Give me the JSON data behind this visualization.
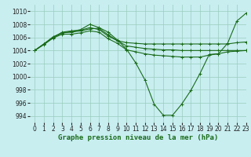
{
  "title": "Graphe pression niveau de la mer (hPa)",
  "bg_color": "#c8eef0",
  "grid_color": "#99ccbb",
  "line_color": "#1a6b1a",
  "xlim": [
    -0.5,
    23
  ],
  "ylim": [
    993,
    1011
  ],
  "yticks": [
    994,
    996,
    998,
    1000,
    1002,
    1004,
    1006,
    1008,
    1010
  ],
  "xticks": [
    0,
    1,
    2,
    3,
    4,
    5,
    6,
    7,
    8,
    9,
    10,
    11,
    12,
    13,
    14,
    15,
    16,
    17,
    18,
    19,
    20,
    21,
    22,
    23
  ],
  "series": [
    [
      1004.0,
      1005.0,
      1006.0,
      1006.7,
      1006.9,
      1007.2,
      1008.0,
      1007.5,
      1006.8,
      1005.6,
      1004.2,
      1002.1,
      999.5,
      995.8,
      994.1,
      994.1,
      995.8,
      997.9,
      1000.5,
      1003.4,
      1003.5,
      1005.1,
      1008.5,
      1009.7
    ],
    [
      1004.0,
      1005.0,
      1006.0,
      1006.8,
      1007.0,
      1007.1,
      1007.5,
      1007.2,
      1006.2,
      1005.5,
      1005.2,
      1005.1,
      1005.0,
      1005.0,
      1005.0,
      1005.0,
      1005.0,
      1005.0,
      1005.0,
      1005.0,
      1005.0,
      1005.0,
      1005.2,
      1005.3
    ],
    [
      1004.0,
      1005.0,
      1006.1,
      1006.7,
      1006.8,
      1007.0,
      1007.3,
      1007.4,
      1006.4,
      1005.5,
      1004.7,
      1004.5,
      1004.3,
      1004.2,
      1004.1,
      1004.1,
      1004.0,
      1004.0,
      1004.0,
      1004.0,
      1004.0,
      1004.0,
      1004.0,
      1004.0
    ],
    [
      1004.0,
      1004.9,
      1005.9,
      1006.5,
      1006.5,
      1006.7,
      1007.0,
      1006.8,
      1005.8,
      1005.1,
      1004.1,
      1003.8,
      1003.5,
      1003.3,
      1003.2,
      1003.1,
      1003.0,
      1003.0,
      1003.0,
      1003.3,
      1003.5,
      1003.8,
      1003.9,
      1004.0
    ]
  ],
  "marker": "+",
  "markersize": 3,
  "linewidth": 0.8,
  "tick_fontsize": 5.5,
  "xlabel_fontsize": 6.5
}
